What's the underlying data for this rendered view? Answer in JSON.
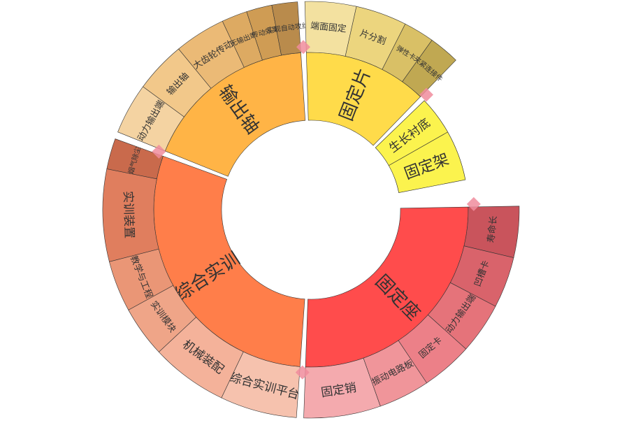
{
  "chart_data": {
    "type": "sunburst",
    "title": "",
    "colors": {
      "inner": [
        "#ff4c4c",
        "#ff7e4a",
        "#ffb446",
        "#ffdb4a",
        "#fbf34e"
      ],
      "tab": "#f08c9c"
    },
    "categories": [
      {
        "name": "固定座",
        "color": "#ff4c4c",
        "children": [
          {
            "name": "寿命长",
            "value": 1,
            "color": "#c9545c"
          },
          {
            "name": "凹槽卡",
            "value": 1,
            "color": "#d9636b"
          },
          {
            "name": "动力输出端",
            "value": 1,
            "color": "#e5737a"
          },
          {
            "name": "固定卡",
            "value": 1,
            "color": "#ec8088"
          },
          {
            "name": "振动电路板",
            "value": 1,
            "color": "#f0959a"
          },
          {
            "name": "固定销",
            "value": 1.5,
            "color": "#f4aaae"
          }
        ]
      },
      {
        "name": "综合实训",
        "color": "#ff7e4a",
        "children": [
          {
            "name": "综合实训平台",
            "value": 1.5,
            "color": "#f6c2ae"
          },
          {
            "name": "机械装配",
            "value": 1.5,
            "color": "#f4b29a"
          },
          {
            "name": "实训模块",
            "value": 1,
            "color": "#efa588"
          },
          {
            "name": "教学与工程",
            "value": 1,
            "color": "#ea9676"
          },
          {
            "name": "实训装置",
            "value": 1.8,
            "color": "#e07e5e"
          },
          {
            "name": "烟气除尘",
            "value": 0.6,
            "color": "#c96a4c"
          }
        ]
      },
      {
        "name": "输出轴",
        "color": "#ffb446",
        "children": [
          {
            "name": "动力输出端",
            "value": 1,
            "color": "#f4d3a2"
          },
          {
            "name": "输出轴",
            "value": 1,
            "color": "#f2c88a"
          },
          {
            "name": "大齿轮传动",
            "value": 1,
            "color": "#ebba76"
          },
          {
            "name": "无输出端",
            "value": 0.5,
            "color": "#ddaa62"
          },
          {
            "name": "传动效果",
            "value": 0.5,
            "color": "#cf9c54"
          },
          {
            "name": "实现自动攻丝",
            "value": 0.5,
            "color": "#b98b4c"
          }
        ]
      },
      {
        "name": "固定片",
        "color": "#ffdb4a",
        "children": [
          {
            "name": "端面固定",
            "value": 1,
            "color": "#f3e1a0"
          },
          {
            "name": "片分割",
            "value": 1,
            "color": "#ecd57e"
          },
          {
            "name": "弹性卡",
            "value": 0.6,
            "color": "#d9c066"
          },
          {
            "name": "夹紧连接件",
            "value": 0.6,
            "color": "#c0a852"
          }
        ]
      },
      {
        "name": "固定架",
        "color": "#fbf34e",
        "children": [
          {
            "name": "生长衬底",
            "value": 1
          },
          {
            "name": "固定架",
            "value": 1.3
          }
        ]
      }
    ]
  }
}
